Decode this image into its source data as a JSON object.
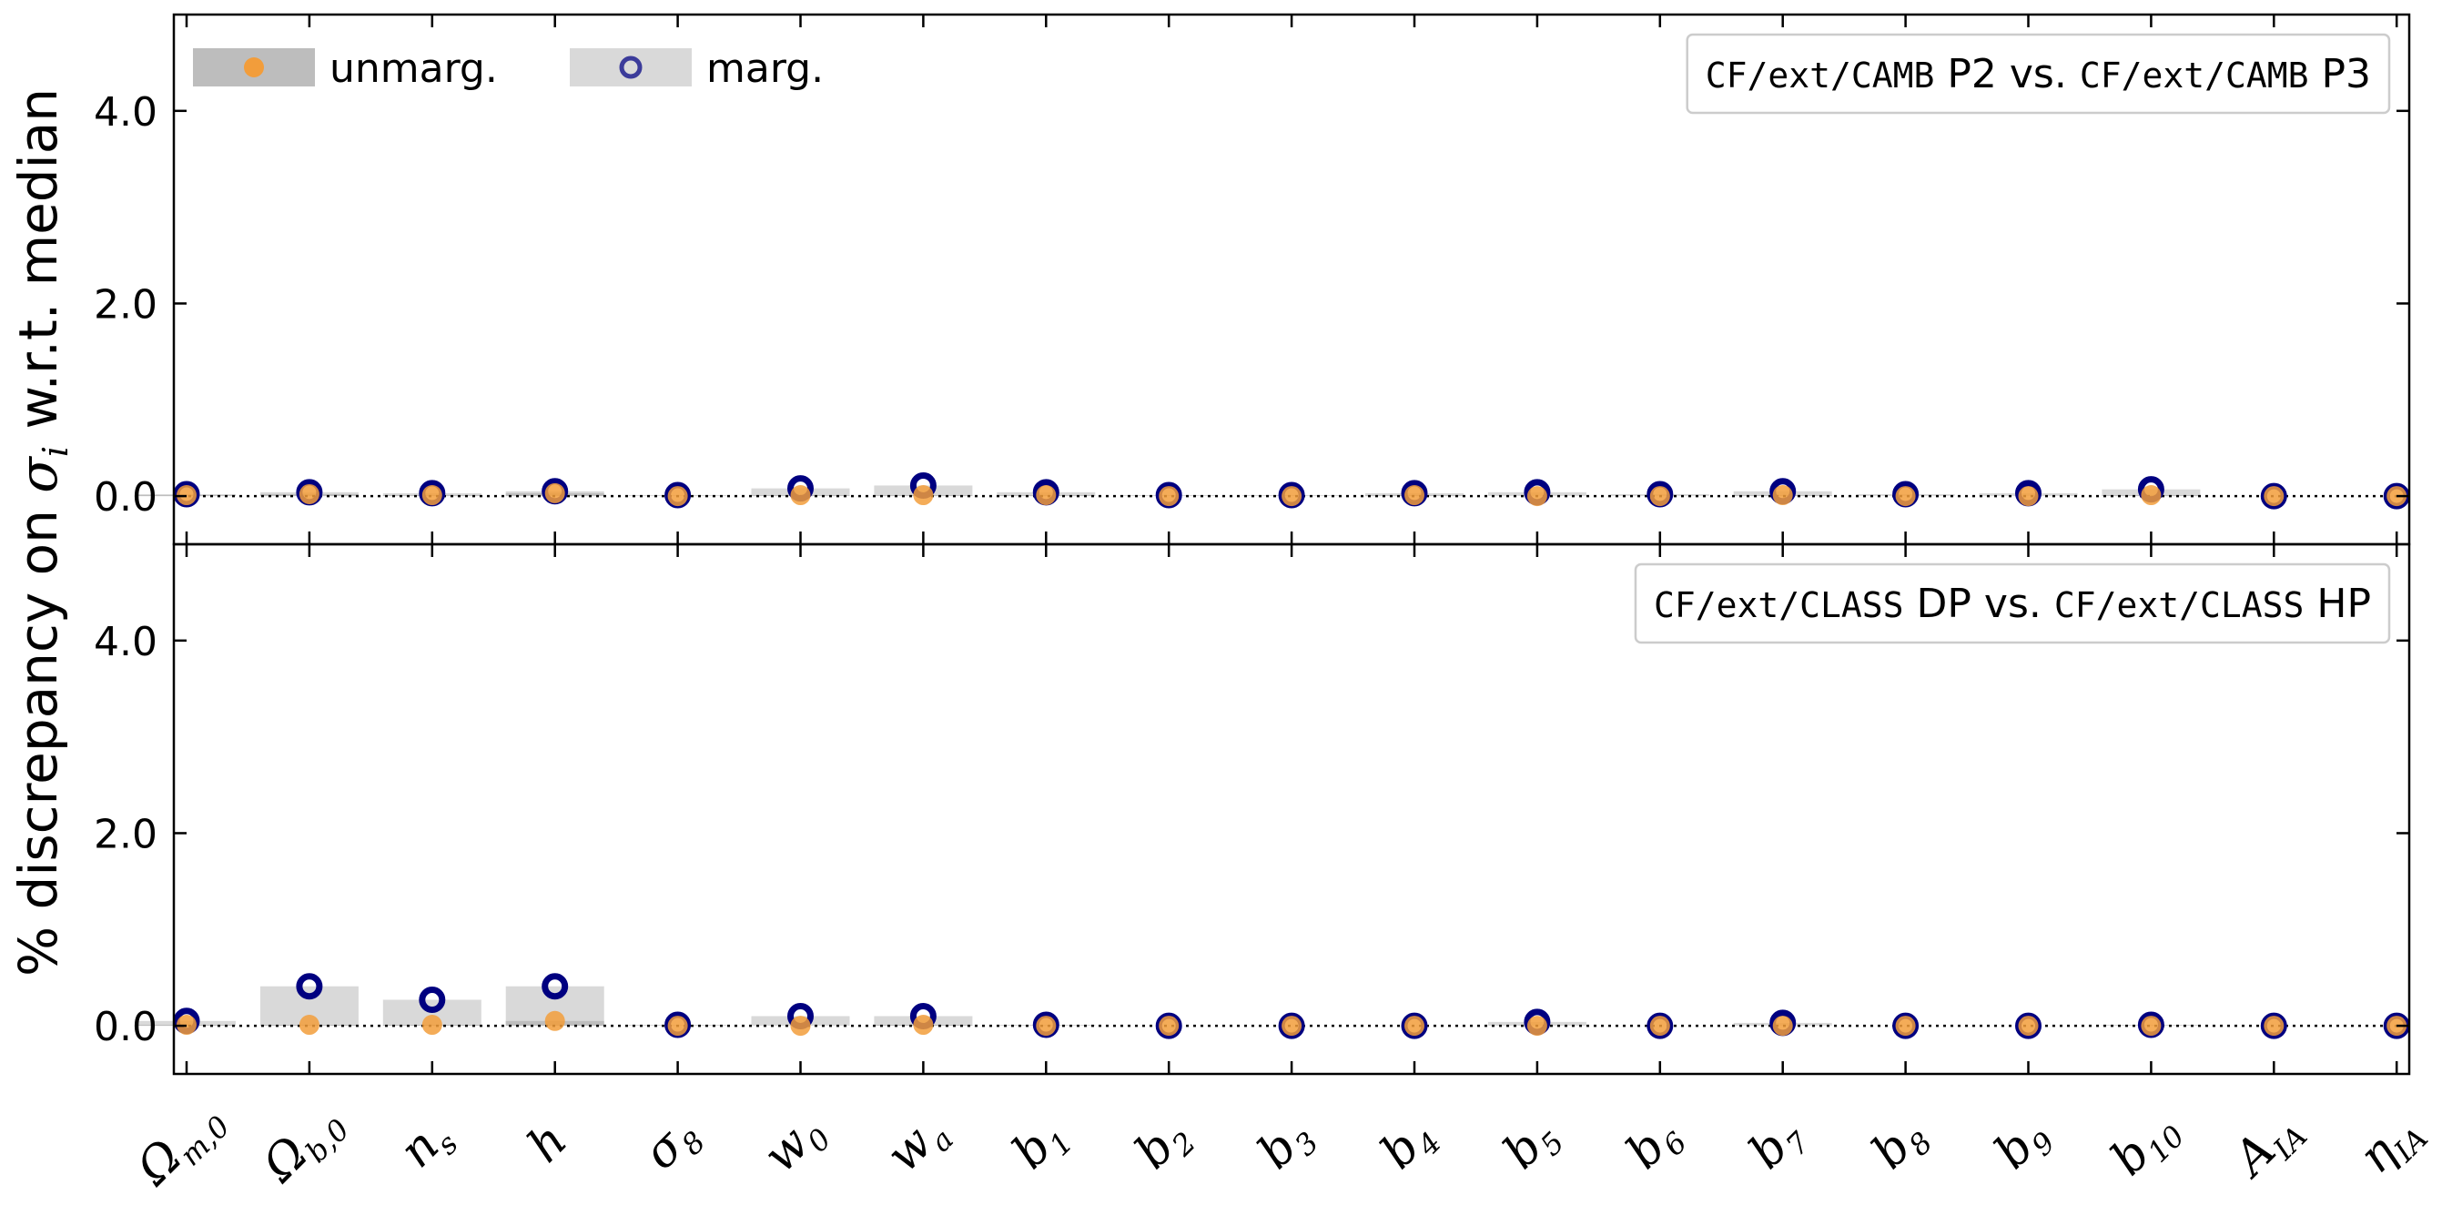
{
  "chart_data": {
    "type": "scatter",
    "ylabel": "% discrepancy on σᵢ w.r.t. median",
    "ylabel_parts": {
      "pre": "% discrepancy on ",
      "sigma": "σ",
      "sub": "i",
      "post": " w.r.t. median"
    },
    "ylim": [
      -0.5,
      5.0
    ],
    "yticks": [
      "0.0",
      "2.0",
      "4.0"
    ],
    "ytick_values": [
      0,
      2,
      4
    ],
    "categories": [
      {
        "id": "Om0",
        "main": "Ω",
        "sub": "m,0"
      },
      {
        "id": "Ob0",
        "main": "Ω",
        "sub": "b,0"
      },
      {
        "id": "ns",
        "main": "n",
        "sub": "s"
      },
      {
        "id": "h",
        "main": "h",
        "sub": ""
      },
      {
        "id": "s8",
        "main": "σ",
        "sub": "8"
      },
      {
        "id": "w0",
        "main": "w",
        "sub": "0"
      },
      {
        "id": "wa",
        "main": "w",
        "sub": "a"
      },
      {
        "id": "b1",
        "main": "b",
        "sub": "1"
      },
      {
        "id": "b2",
        "main": "b",
        "sub": "2"
      },
      {
        "id": "b3",
        "main": "b",
        "sub": "3"
      },
      {
        "id": "b4",
        "main": "b",
        "sub": "4"
      },
      {
        "id": "b5",
        "main": "b",
        "sub": "5"
      },
      {
        "id": "b6",
        "main": "b",
        "sub": "6"
      },
      {
        "id": "b7",
        "main": "b",
        "sub": "7"
      },
      {
        "id": "b8",
        "main": "b",
        "sub": "8"
      },
      {
        "id": "b9",
        "main": "b",
        "sub": "9"
      },
      {
        "id": "b10",
        "main": "b",
        "sub": "10"
      },
      {
        "id": "AIA",
        "main": "A",
        "sub": "IA"
      },
      {
        "id": "etaIA",
        "main": "η",
        "sub": "IA"
      }
    ],
    "legend": {
      "unmarg": "unmarg.",
      "marg": "marg."
    },
    "colors": {
      "unmarg_marker": "#f29d3b",
      "unmarg_bar": "#bdbdbd",
      "marg_marker": "#000080",
      "marg_bar": "#d9d9d9",
      "legend_marg_marker": "#3b3b9a"
    },
    "panels": [
      {
        "annotation": {
          "code1": "CF/ext/CAMB",
          "txt1": " P2 vs. ",
          "code2": "CF/ext/CAMB",
          "txt2": " P3"
        },
        "unmarg": [
          0.01,
          0.02,
          0.01,
          0.03,
          0.0,
          0.01,
          0.01,
          0.01,
          0.0,
          0.0,
          0.01,
          0.0,
          0.0,
          0.01,
          0.0,
          0.0,
          0.01,
          0.0,
          0.0
        ],
        "marg": [
          0.02,
          0.04,
          0.03,
          0.05,
          0.01,
          0.08,
          0.11,
          0.04,
          0.01,
          0.01,
          0.03,
          0.04,
          0.02,
          0.05,
          0.02,
          0.03,
          0.07,
          0.0,
          0.0
        ]
      },
      {
        "annotation": {
          "code1": "CF/ext/CLASS",
          "txt1": " DP vs. ",
          "code2": "CF/ext/CLASS",
          "txt2": " HP"
        },
        "unmarg": [
          0.01,
          0.01,
          0.01,
          0.05,
          0.0,
          0.0,
          0.01,
          0.0,
          0.0,
          0.0,
          0.0,
          0.0,
          0.0,
          0.0,
          0.0,
          0.0,
          0.0,
          0.0,
          0.0
        ],
        "marg": [
          0.05,
          0.41,
          0.27,
          0.41,
          0.01,
          0.1,
          0.1,
          0.01,
          0.0,
          0.0,
          0.0,
          0.04,
          0.0,
          0.03,
          0.0,
          0.0,
          0.01,
          0.0,
          0.0
        ]
      }
    ]
  }
}
